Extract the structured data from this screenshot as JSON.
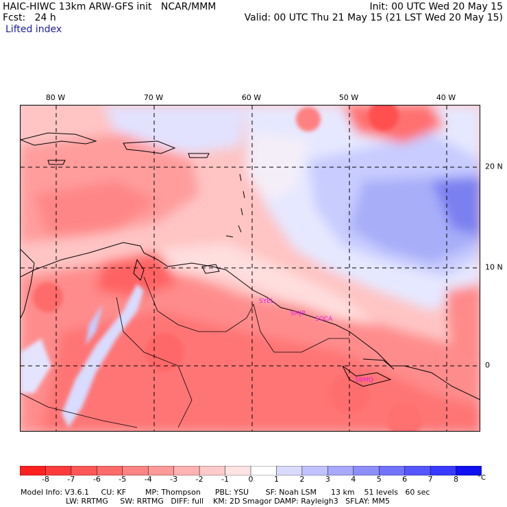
{
  "header": {
    "left_line1": "HAIC-HIWC 13km ARW-GFS init   NCAR/MMM",
    "left_line2": "Fcst:   24 h",
    "field": "Lifted index",
    "right_line1": "Init: 00 UTC Wed 20 May 15",
    "right_line2": "Valid: 00 UTC Thu 21 May 15 (21 LST Wed 20 May 15)"
  },
  "map": {
    "lon_labels": [
      "80 W",
      "70 W",
      "60 W",
      "50 W",
      "40 W"
    ],
    "lat_labels": [
      "20 N",
      "10 N",
      "0"
    ],
    "stations": [
      "SYEL",
      "SMJP",
      "SOCA",
      "SBMQ"
    ],
    "station_color": "#e020e0",
    "grid_line_color": "#000000"
  },
  "colorbar": {
    "unit": "°C",
    "ticks": [
      "-8",
      "-7",
      "-6",
      "-5",
      "-4",
      "-3",
      "-2",
      "-1",
      "0",
      "1",
      "2",
      "3",
      "4",
      "5",
      "6",
      "7",
      "8"
    ],
    "colors": [
      "#ff2020",
      "#ff3c3c",
      "#ff5656",
      "#ff6c6c",
      "#ff8484",
      "#ff9a9a",
      "#ffb2b2",
      "#ffcaca",
      "#ffe4e4",
      "#ffffff",
      "#dadaff",
      "#c2c2ff",
      "#a8a8ff",
      "#8e8eff",
      "#7272ff",
      "#5656ff",
      "#3a3aff",
      "#1010f0"
    ]
  },
  "footer": {
    "line1": "Model Info: V3.6.1     CU: KF        MP: Thompson      PBL: YSU       SF: Noah LSM      13 km    51 levels   60 sec",
    "line2": "LW: RRTMG     SW: RRTMG   DIFF: full    KM: 2D Smagor DAMP: Rayleigh3   SFLAY: MM5"
  }
}
